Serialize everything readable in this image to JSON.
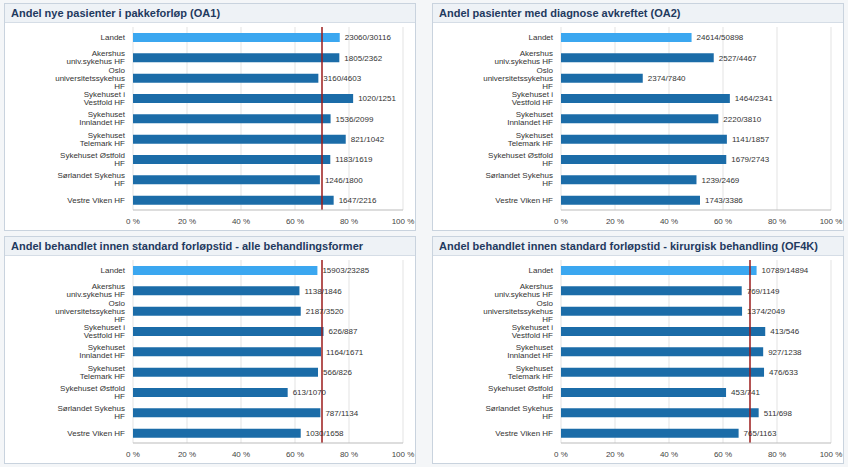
{
  "chart_data": [
    {
      "type": "bar",
      "title": "Andel nye pasienter i pakkeforløp (OA1)",
      "orientation": "horizontal",
      "categories": [
        "Landet",
        "Akershus univ.sykehus HF",
        "Oslo universitetssykehus HF",
        "Sykehuset i Vestfold HF",
        "Sykehuset Innlandet HF",
        "Sykehuset Telemark HF",
        "Sykehuset Østfold HF",
        "Sørlandet Sykehus HF",
        "Vestre Viken HF"
      ],
      "values": [
        76.57,
        76.42,
        68.65,
        81.53,
        73.18,
        78.79,
        73.07,
        69.22,
        74.32
      ],
      "value_labels": [
        "23060/30116",
        "1805/2362",
        "3160/4603",
        "1020/1251",
        "1536/2099",
        "821/1042",
        "1183/1619",
        "1246/1800",
        "1647/2216"
      ],
      "colors": [
        "#3BA7F0",
        "#1B6CA8",
        "#1B6CA8",
        "#1B6CA8",
        "#1B6CA8",
        "#1B6CA8",
        "#1B6CA8",
        "#1B6CA8",
        "#1B6CA8"
      ],
      "xlim": [
        0,
        100
      ],
      "xticks": [
        {
          "value": 0,
          "label": "0 %"
        },
        {
          "value": 20,
          "label": "20 %"
        },
        {
          "value": 40,
          "label": "40 %"
        },
        {
          "value": 60,
          "label": "60 %"
        },
        {
          "value": 80,
          "label": "80 %"
        },
        {
          "value": 100,
          "label": "100 %"
        }
      ],
      "grid": true,
      "data_labels": true,
      "target_line": 70
    },
    {
      "type": "bar",
      "title": "Andel pasienter med diagnose avkreftet (OA2)",
      "orientation": "horizontal",
      "categories": [
        "Landet",
        "Akershus univ.sykehus HF",
        "Oslo universitetssykehus HF",
        "Sykehuset i Vestfold HF",
        "Sykehuset Innlandet HF",
        "Sykehuset Telemark HF",
        "Sykehuset Østfold HF",
        "Sørlandet Sykehus HF",
        "Vestre Viken HF"
      ],
      "values": [
        48.36,
        56.57,
        30.28,
        62.54,
        58.27,
        61.44,
        61.21,
        50.18,
        51.48
      ],
      "value_labels": [
        "24614/50898",
        "2527/4467",
        "2374/7840",
        "1464/2341",
        "2220/3810",
        "1141/1857",
        "1679/2743",
        "1239/2469",
        "1743/3386"
      ],
      "colors": [
        "#3BA7F0",
        "#1B6CA8",
        "#1B6CA8",
        "#1B6CA8",
        "#1B6CA8",
        "#1B6CA8",
        "#1B6CA8",
        "#1B6CA8",
        "#1B6CA8"
      ],
      "xlim": [
        0,
        100
      ],
      "xticks": [
        {
          "value": 0,
          "label": "0 %"
        },
        {
          "value": 20,
          "label": "20 %"
        },
        {
          "value": 40,
          "label": "40 %"
        },
        {
          "value": 60,
          "label": "60 %"
        },
        {
          "value": 80,
          "label": "80 %"
        },
        {
          "value": 100,
          "label": "100 %"
        }
      ],
      "grid": true,
      "data_labels": true
    },
    {
      "type": "bar",
      "title": "Andel behandlet innen standard forløpstid - alle behandlingsformer",
      "orientation": "horizontal",
      "categories": [
        "Landet",
        "Akershus univ.sykehus HF",
        "Oslo universitetssykehus HF",
        "Sykehuset i Vestfold HF",
        "Sykehuset Innlandet HF",
        "Sykehuset Telemark HF",
        "Sykehuset Østfold HF",
        "Sørlandet Sykehus HF",
        "Vestre Viken HF"
      ],
      "values": [
        68.3,
        61.65,
        62.13,
        70.57,
        69.66,
        68.52,
        57.29,
        69.4,
        62.12
      ],
      "value_labels": [
        "15903/23285",
        "1138/1846",
        "2187/3520",
        "626/887",
        "1164/1671",
        "566/826",
        "613/1070",
        "787/1134",
        "1030/1658"
      ],
      "colors": [
        "#3BA7F0",
        "#1B6CA8",
        "#1B6CA8",
        "#1B6CA8",
        "#1B6CA8",
        "#1B6CA8",
        "#1B6CA8",
        "#1B6CA8",
        "#1B6CA8"
      ],
      "xlim": [
        0,
        100
      ],
      "xticks": [
        {
          "value": 0,
          "label": "0 %"
        },
        {
          "value": 20,
          "label": "20 %"
        },
        {
          "value": 40,
          "label": "40 %"
        },
        {
          "value": 60,
          "label": "60 %"
        },
        {
          "value": 80,
          "label": "80 %"
        },
        {
          "value": 100,
          "label": "100 %"
        }
      ],
      "grid": true,
      "data_labels": true,
      "target_line": 70
    },
    {
      "type": "bar",
      "title": "Andel behandlet innen standard forløpstid - kirurgisk behandling (OF4K)",
      "orientation": "horizontal",
      "categories": [
        "Landet",
        "Akershus univ.sykehus HF",
        "Oslo universitetssykehus HF",
        "Sykehuset i Vestfold HF",
        "Sykehuset Innlandet HF",
        "Sykehuset Telemark HF",
        "Sykehuset Østfold HF",
        "Sørlandet Sykehus HF",
        "Vestre Viken HF"
      ],
      "values": [
        72.44,
        66.93,
        67.06,
        75.64,
        74.88,
        75.2,
        61.13,
        73.21,
        65.78
      ],
      "value_labels": [
        "10789/14894",
        "769/1149",
        "1374/2049",
        "413/546",
        "927/1238",
        "476/633",
        "453/741",
        "511/698",
        "765/1163"
      ],
      "colors": [
        "#3BA7F0",
        "#1B6CA8",
        "#1B6CA8",
        "#1B6CA8",
        "#1B6CA8",
        "#1B6CA8",
        "#1B6CA8",
        "#1B6CA8",
        "#1B6CA8"
      ],
      "xlim": [
        0,
        100
      ],
      "xticks": [
        {
          "value": 0,
          "label": "0 %"
        },
        {
          "value": 20,
          "label": "20 %"
        },
        {
          "value": 40,
          "label": "40 %"
        },
        {
          "value": 60,
          "label": "60 %"
        },
        {
          "value": 80,
          "label": "80 %"
        },
        {
          "value": 100,
          "label": "100 %"
        }
      ],
      "grid": true,
      "data_labels": true,
      "target_line": 70
    }
  ]
}
